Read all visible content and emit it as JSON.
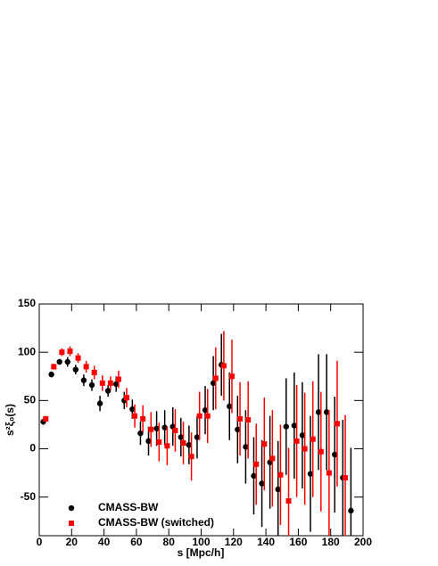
{
  "chart_data": {
    "type": "scatter",
    "xlabel": "s [Mpc/h]",
    "ylabel": "s²ξ₀(s)",
    "xlim": [
      0,
      200
    ],
    "ylim": [
      -90,
      150
    ],
    "xticks": [
      0,
      20,
      40,
      60,
      80,
      100,
      120,
      140,
      160,
      180,
      200
    ],
    "yticks": [
      -50,
      0,
      50,
      100,
      150
    ],
    "legend": "bottom-left",
    "series": [
      {
        "name": "CMASS-BW",
        "color": "#000000",
        "marker": "circle",
        "x": [
          2.5,
          7.5,
          12.5,
          17.5,
          22.5,
          27.5,
          32.5,
          37.5,
          42.5,
          47.5,
          52.5,
          57.5,
          62.5,
          67.5,
          72.5,
          77.5,
          82.5,
          87.5,
          92.5,
          97.5,
          102.5,
          107.5,
          112.5,
          117.5,
          122.5,
          127.5,
          132.5,
          137.5,
          142.5,
          147.5,
          152.5,
          157.5,
          162.5,
          167.5,
          172.5,
          177.5,
          182.5,
          187.5,
          192.5
        ],
        "values": [
          28,
          77,
          90,
          90,
          82,
          71,
          66,
          47,
          60,
          67,
          50,
          41,
          16,
          8,
          21,
          22,
          23,
          12,
          4,
          12,
          40,
          68,
          87,
          44,
          20,
          2,
          -28,
          -36,
          -14,
          -42,
          23,
          24,
          14,
          -26,
          38,
          38,
          -6,
          -30,
          -64
        ],
        "errors": [
          3,
          3,
          3,
          5,
          5,
          6,
          6,
          8,
          6,
          8,
          9,
          10,
          12,
          15,
          18,
          18,
          20,
          20,
          20,
          22,
          25,
          28,
          32,
          35,
          35,
          38,
          40,
          45,
          48,
          50,
          50,
          55,
          55,
          60,
          60,
          60,
          60,
          60,
          65
        ]
      },
      {
        "name": "CMASS-BW (switched)",
        "color": "#ff0000",
        "marker": "square",
        "x": [
          4,
          9,
          14,
          19,
          24,
          29,
          34,
          39,
          44,
          49,
          54,
          59,
          64,
          69,
          74,
          79,
          84,
          89,
          94,
          99,
          104,
          109,
          114,
          119,
          124,
          129,
          134,
          139,
          144,
          149,
          154,
          159,
          164,
          169,
          174,
          179,
          184,
          189
        ],
        "values": [
          31,
          85,
          100,
          101,
          94,
          85,
          79,
          68,
          68,
          72,
          53,
          34,
          31,
          20,
          7,
          3,
          19,
          6,
          -8,
          34,
          34,
          73,
          86,
          75,
          31,
          30,
          -16,
          5,
          -10,
          -27,
          -54,
          8,
          0,
          10,
          -3,
          -25,
          26,
          -30
        ],
        "errors": [
          3,
          3,
          4,
          5,
          5,
          6,
          7,
          8,
          7,
          9,
          10,
          12,
          14,
          18,
          20,
          20,
          22,
          22,
          25,
          25,
          28,
          32,
          36,
          38,
          38,
          40,
          42,
          48,
          50,
          52,
          55,
          58,
          58,
          60,
          62,
          65,
          65,
          65
        ]
      }
    ]
  }
}
